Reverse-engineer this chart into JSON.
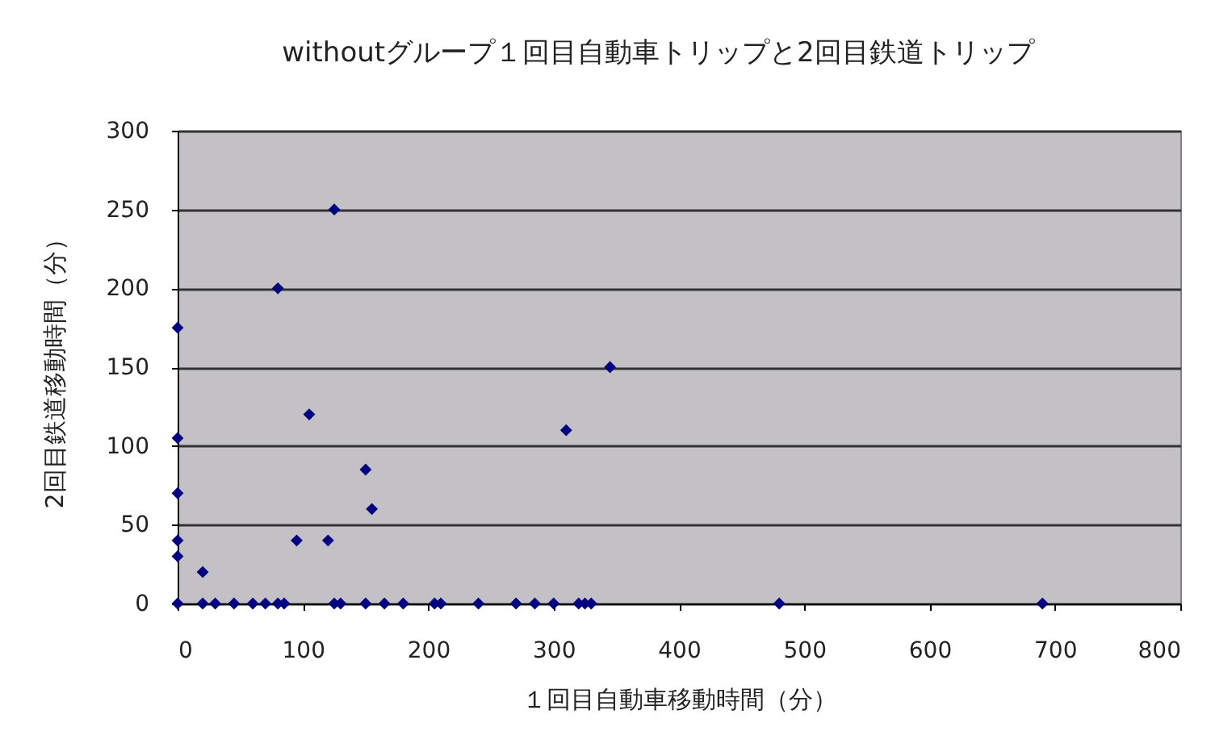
{
  "chart_data": {
    "type": "scatter",
    "title": "withoutグループ１回目自動車トリップと2回目鉄道トリップ",
    "xlabel": "１回目自動車移動時間（分）",
    "ylabel": "2回目鉄道移動時間（分）",
    "xlim": [
      0,
      800
    ],
    "xticks": [
      0,
      100,
      200,
      300,
      400,
      500,
      600,
      700,
      800
    ],
    "ylim": [
      0,
      300
    ],
    "yticks": [
      0,
      50,
      100,
      150,
      200,
      250,
      300
    ],
    "grid": "y",
    "marker": "diamond",
    "series": [
      {
        "color": "#000080",
        "x": [
          0,
          0,
          0,
          0,
          0,
          20,
          80,
          125,
          345,
          310,
          105,
          150,
          155,
          95,
          120,
          0,
          20,
          30,
          45,
          60,
          70,
          80,
          85,
          125,
          130,
          150,
          165,
          180,
          205,
          210,
          240,
          270,
          285,
          300,
          320,
          325,
          330,
          480,
          690
        ],
        "values": [
          175,
          105,
          70,
          40,
          30,
          20,
          200,
          250,
          150,
          110,
          120,
          85,
          60,
          40,
          40,
          0,
          0,
          0,
          0,
          0,
          0,
          0,
          0,
          0,
          0,
          0,
          0,
          0,
          0,
          0,
          0,
          0,
          0,
          0,
          0,
          0,
          0,
          0,
          0
        ]
      }
    ]
  }
}
